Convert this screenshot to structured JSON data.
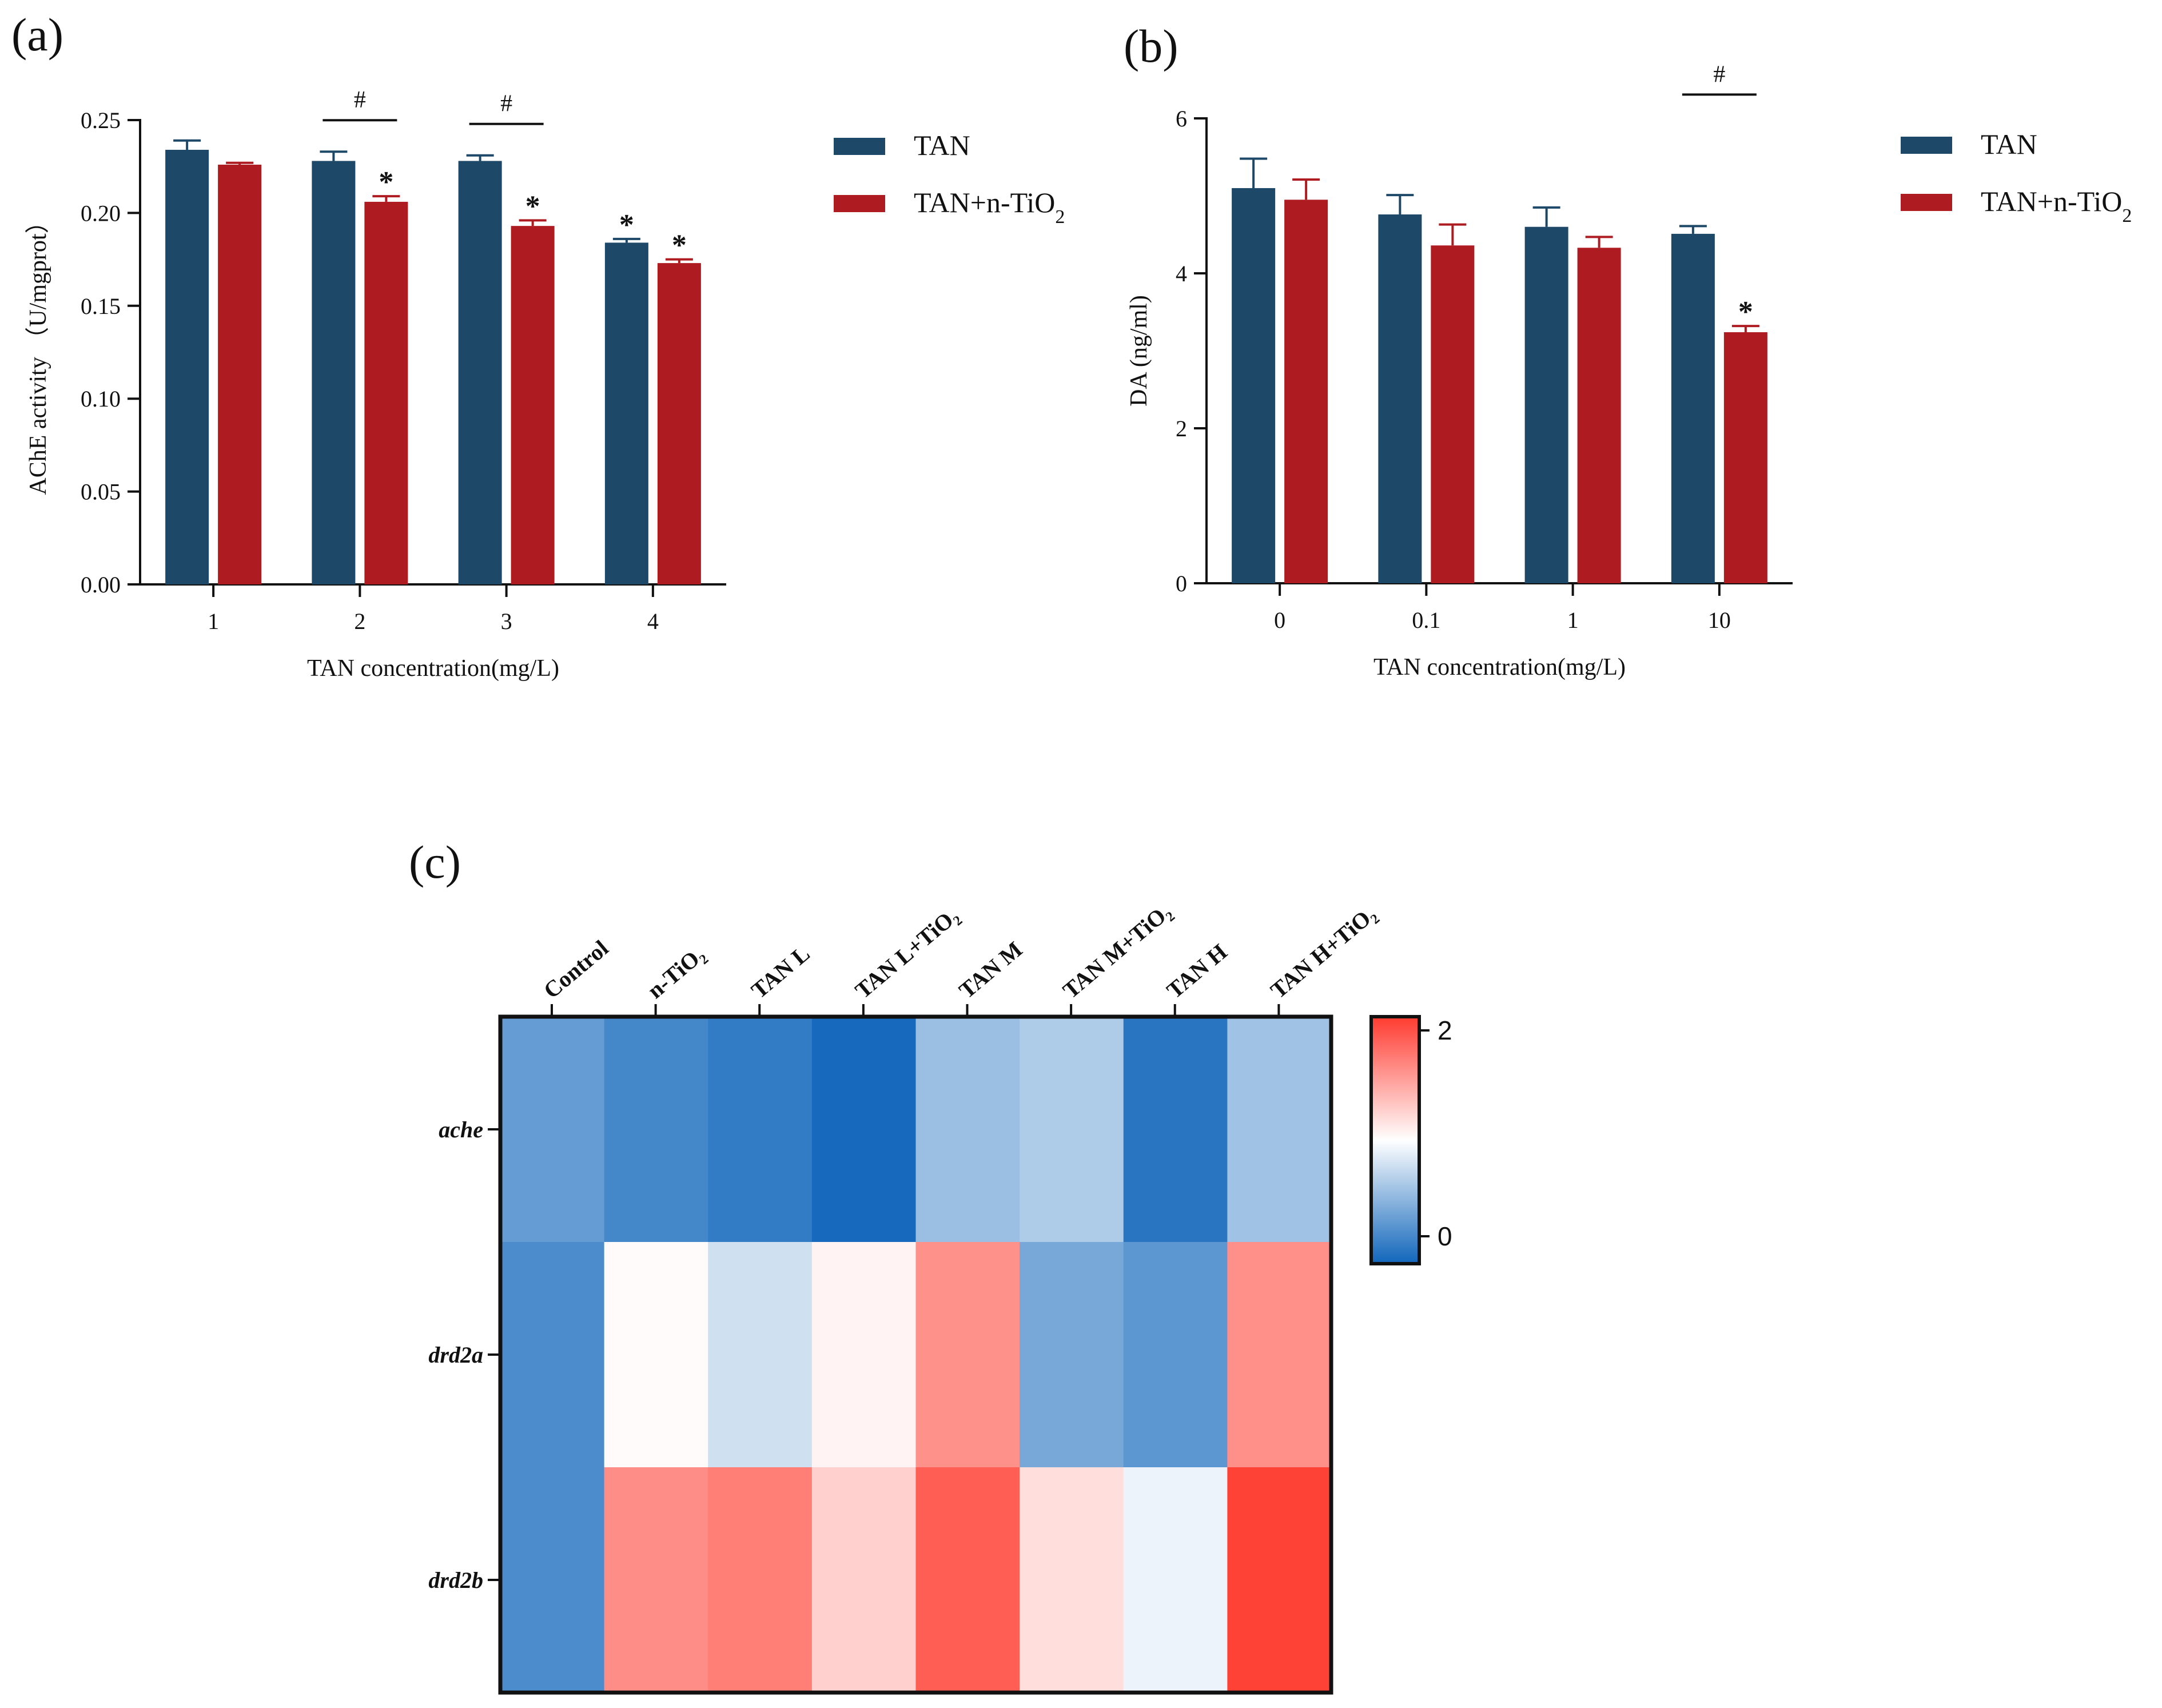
{
  "chart_data": [
    {
      "panel": "(a)",
      "type": "bar",
      "categories": [
        "1",
        "2",
        "3",
        "4"
      ],
      "xlabel": "TAN concentration(mg/L)",
      "ylabel": "AChE activity （U/mgprot）",
      "ylim": [
        0,
        0.25
      ],
      "yticks": [
        "0.00",
        "0.05",
        "0.10",
        "0.15",
        "0.20",
        "0.25"
      ],
      "series": [
        {
          "name": "TAN",
          "color": "#1e4868",
          "values": [
            0.234,
            0.228,
            0.228,
            0.184
          ],
          "errors": [
            0.005,
            0.005,
            0.003,
            0.002
          ]
        },
        {
          "name_base": "TAN+n-TiO",
          "name_sub": "2",
          "color": "#ae1c22",
          "values": [
            0.226,
            0.206,
            0.193,
            0.173
          ],
          "errors": [
            0.001,
            0.003,
            0.003,
            0.002
          ]
        }
      ],
      "star_marks": [
        [
          1,
          1
        ],
        [
          2,
          1
        ],
        [
          3,
          0
        ],
        [
          3,
          1
        ]
      ],
      "hash_marks": [
        1,
        2
      ],
      "star_symbol": "*",
      "hash_symbol": "#",
      "legend": "right"
    },
    {
      "panel": "(b)",
      "type": "bar",
      "categories": [
        "0",
        "0.1",
        "1",
        "10"
      ],
      "xlabel": "TAN concentration(mg/L)",
      "ylabel": "DA (ng/ml)",
      "ylim": [
        0,
        6
      ],
      "yticks": [
        "0",
        "2",
        "4",
        "6"
      ],
      "series": [
        {
          "name": "TAN",
          "color": "#1e4868",
          "values": [
            5.1,
            4.76,
            4.6,
            4.51
          ],
          "errors": [
            0.38,
            0.25,
            0.25,
            0.1
          ]
        },
        {
          "name_base": "TAN+n-TiO",
          "name_sub": "2",
          "color": "#ae1c22",
          "values": [
            4.95,
            4.36,
            4.33,
            3.24
          ],
          "errors": [
            0.26,
            0.27,
            0.14,
            0.08
          ]
        }
      ],
      "star_marks": [
        [
          3,
          1
        ]
      ],
      "hash_marks": [
        3
      ],
      "star_symbol": "*",
      "hash_symbol": "#",
      "legend": "right"
    },
    {
      "panel": "(c)",
      "type": "heatmap",
      "columns": [
        "Control",
        "n-TiO₂",
        "TAN L",
        "TAN L+TiO₂",
        "TAN M",
        "TAN M+TiO₂",
        "TAN H",
        "TAN H+TiO₂"
      ],
      "rows": [
        "ache",
        "drd2a",
        "drd2b"
      ],
      "values": [
        [
          0.35,
          0.22,
          0.14,
          0.02,
          0.58,
          0.66,
          0.1,
          0.6
        ],
        [
          0.25,
          1.02,
          0.8,
          1.06,
          1.56,
          0.43,
          0.32,
          1.57
        ],
        [
          0.25,
          1.58,
          1.66,
          1.24,
          1.82,
          1.17,
          0.92,
          1.97
        ]
      ],
      "colorbar": {
        "min": 0,
        "max": 2,
        "ticks": [
          "2",
          "0"
        ]
      },
      "colors": {
        "low": "#1166bb",
        "mid": "#ffffff",
        "high": "#ff3b30"
      }
    }
  ]
}
